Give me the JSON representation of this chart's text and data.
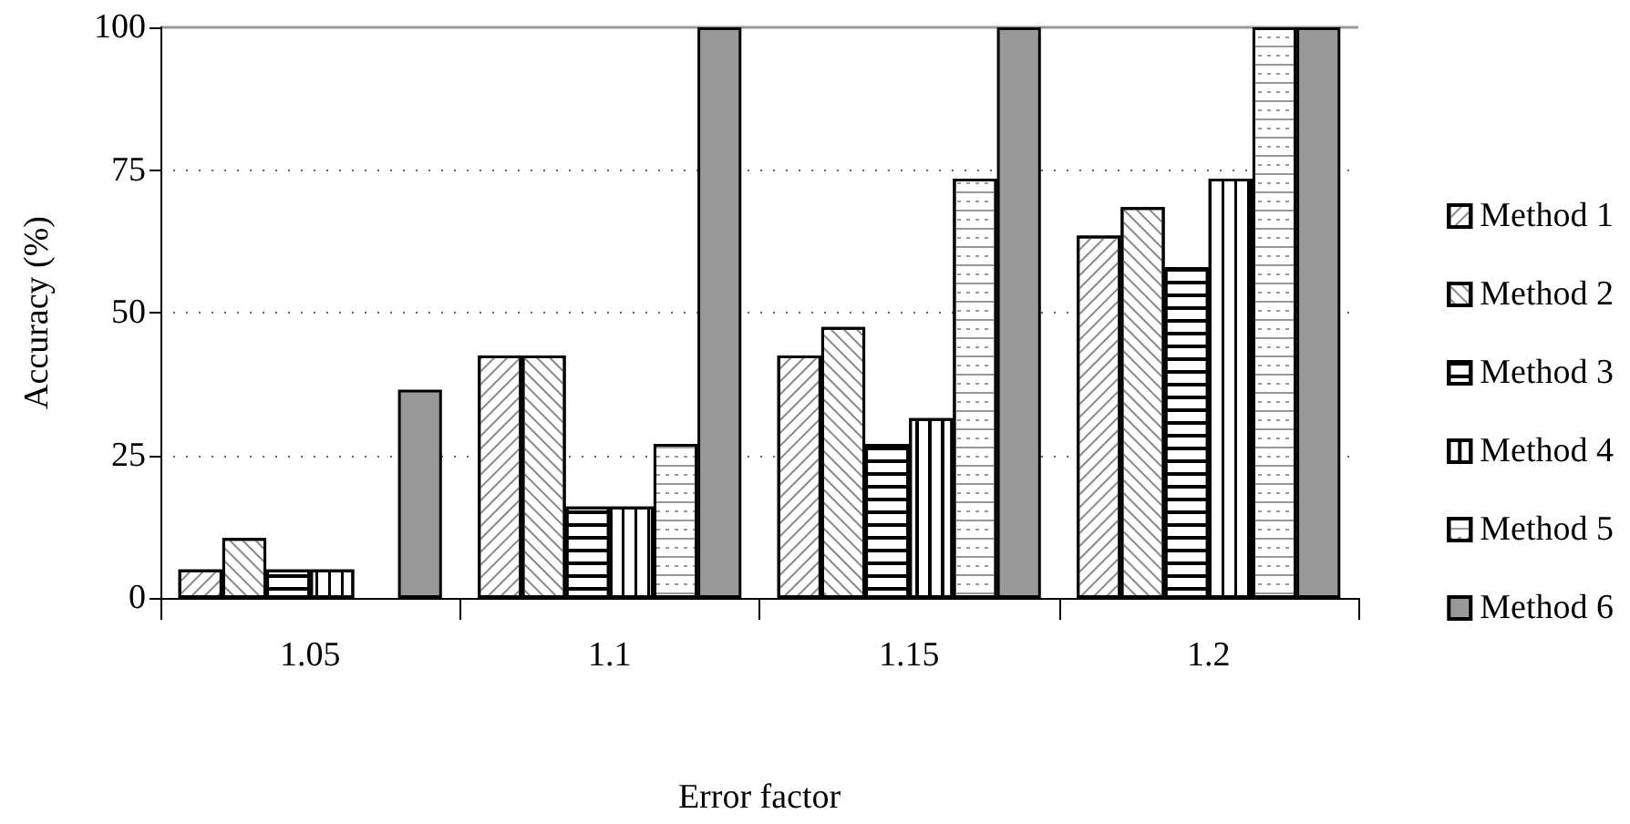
{
  "chart_data": {
    "type": "bar",
    "xlabel": "Error factor",
    "ylabel": "Accuracy (%)",
    "categories": [
      "1.05",
      "1.1",
      "1.15",
      "1.2"
    ],
    "series": [
      {
        "name": "Method 1",
        "color": "#ffffff",
        "values": [
          5,
          42.5,
          42.5,
          63.5
        ]
      },
      {
        "name": "Method 2",
        "color": "#ffffff",
        "values": [
          10.5,
          42.5,
          47.5,
          68.5
        ]
      },
      {
        "name": "Method 3",
        "color": "#ffffff",
        "values": [
          5,
          16,
          27,
          58
        ]
      },
      {
        "name": "Method 4",
        "color": "#ffffff",
        "values": [
          5,
          16,
          31.5,
          73.5
        ]
      },
      {
        "name": "Method 5",
        "color": "#ffffff",
        "values": [
          null,
          27,
          73.5,
          100
        ]
      },
      {
        "name": "Method 6",
        "color": "#999999",
        "values": [
          36.5,
          100,
          100,
          100
        ]
      }
    ],
    "ylim": [
      0,
      100
    ],
    "yticks": [
      0,
      25,
      50,
      75,
      100
    ],
    "grid": "y",
    "legend": "right"
  }
}
